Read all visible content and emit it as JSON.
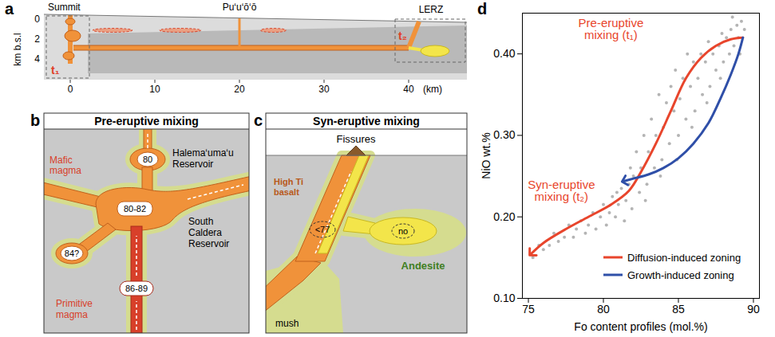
{
  "diagram": {
    "a": {
      "letter": "a",
      "ylabel": "km b.s.l",
      "yticks": [
        0,
        2,
        4
      ],
      "xticks": [
        0,
        10,
        20,
        30,
        40
      ],
      "xunit": "(km)",
      "labels": {
        "summit": "Summit",
        "vent": "Pu‘u‘ō‘ō",
        "rift": "LERZ",
        "t1": "t₁",
        "t2": "t₂"
      }
    },
    "b": {
      "letter": "b",
      "title": "Pre-eruptive mixing",
      "reservoir_top": "Halema‘uma‘u Reservoir",
      "reservoir_main": "South Caldera Reservoir",
      "mafic": "Mafic magma",
      "primitive": "Primitive magma",
      "fo_top": "80",
      "fo_main": "80-82",
      "fo_side": "84?",
      "fo_deep": "86-89"
    },
    "c": {
      "letter": "c",
      "title": "Syn-eruptive mixing",
      "vent": "Fissures",
      "basalt": "High Ti basalt",
      "andesite": "Andesite",
      "mush": "mush",
      "fo_basalt": "<77",
      "fo_andesite": "no"
    }
  },
  "chart_data": {
    "type": "scatter",
    "panel_label": "d",
    "x_label": "Fo content profiles (mol.%)",
    "y_label": "NiO wt.%",
    "xlim": [
      74.6,
      90.4
    ],
    "ylim": [
      0.1,
      0.45
    ],
    "xticks": [
      75,
      80,
      85,
      90
    ],
    "yticks": [
      0.1,
      0.2,
      0.3,
      0.4
    ],
    "grid": false,
    "color": "#444444",
    "x": [
      89.4,
      89.2,
      89.1,
      89.0,
      88.9,
      88.7,
      88.6,
      88.5,
      88.4,
      88.2,
      88.0,
      87.9,
      87.8,
      87.7,
      87.5,
      87.3,
      87.1,
      87.0,
      86.9,
      86.8,
      86.6,
      86.5,
      86.3,
      86.1,
      86.0,
      85.9,
      85.8,
      85.6,
      85.5,
      85.3,
      85.1,
      85.0,
      84.9,
      84.8,
      84.7,
      84.5,
      84.4,
      84.2,
      84.0,
      83.9,
      83.8,
      83.7,
      83.5,
      83.4,
      83.2,
      83.0,
      82.9,
      82.8,
      82.7,
      82.5,
      82.4,
      82.2,
      82.0,
      81.9,
      81.8,
      81.7,
      81.5,
      81.4,
      81.2,
      81.0,
      80.9,
      80.8,
      80.6,
      80.4,
      80.2,
      80.0,
      79.8,
      79.5,
      79.3,
      79.0,
      78.8,
      78.5,
      78.2,
      78.0,
      77.7,
      77.4,
      77.0,
      76.7,
      76.4,
      76.0,
      75.7,
      75.3
    ],
    "values": [
      0.43,
      0.44,
      0.4,
      0.42,
      0.435,
      0.41,
      0.445,
      0.43,
      0.4,
      0.42,
      0.39,
      0.425,
      0.37,
      0.41,
      0.38,
      0.4,
      0.36,
      0.415,
      0.34,
      0.39,
      0.35,
      0.4,
      0.37,
      0.33,
      0.39,
      0.31,
      0.36,
      0.4,
      0.32,
      0.37,
      0.345,
      0.3,
      0.27,
      0.38,
      0.33,
      0.36,
      0.29,
      0.34,
      0.31,
      0.27,
      0.25,
      0.35,
      0.3,
      0.26,
      0.32,
      0.28,
      0.24,
      0.22,
      0.3,
      0.26,
      0.23,
      0.28,
      0.25,
      0.21,
      0.26,
      0.24,
      0.22,
      0.195,
      0.235,
      0.215,
      0.23,
      0.2,
      0.225,
      0.205,
      0.19,
      0.215,
      0.2,
      0.185,
      0.205,
      0.19,
      0.18,
      0.195,
      0.185,
      0.175,
      0.19,
      0.175,
      0.17,
      0.18,
      0.165,
      0.16,
      0.165,
      0.15
    ],
    "series": [
      {
        "name": "Diffusion-induced zoning",
        "color": "#e8452c",
        "type": "line",
        "marker": "arrow",
        "x": [
          89.3,
          88.5,
          87.5,
          86.5,
          85.5,
          84.5,
          83.5,
          82.5,
          81.7,
          80.5,
          79.0,
          77.5,
          76.0,
          75.2
        ],
        "values": [
          0.42,
          0.418,
          0.41,
          0.395,
          0.37,
          0.33,
          0.29,
          0.255,
          0.232,
          0.215,
          0.2,
          0.185,
          0.168,
          0.155
        ]
      },
      {
        "name": "Growth-induced zoning",
        "color": "#2f4fa8",
        "type": "line",
        "marker": "arrow",
        "x": [
          89.3,
          89.0,
          88.5,
          87.8,
          87.0,
          86.0,
          85.0,
          84.0,
          83.0,
          82.0,
          81.4
        ],
        "values": [
          0.42,
          0.4,
          0.375,
          0.345,
          0.315,
          0.29,
          0.272,
          0.26,
          0.252,
          0.247,
          0.244
        ]
      }
    ],
    "annotations": [
      {
        "text": "Pre-eruptive mixing (t₁)",
        "x": 80.5,
        "y": 0.43,
        "color": "#e8452c"
      },
      {
        "text": "Syn-eruptive mixing (t₂)",
        "x": 77.2,
        "y": 0.232,
        "color": "#e8452c"
      }
    ],
    "legend": "bottom-right"
  }
}
